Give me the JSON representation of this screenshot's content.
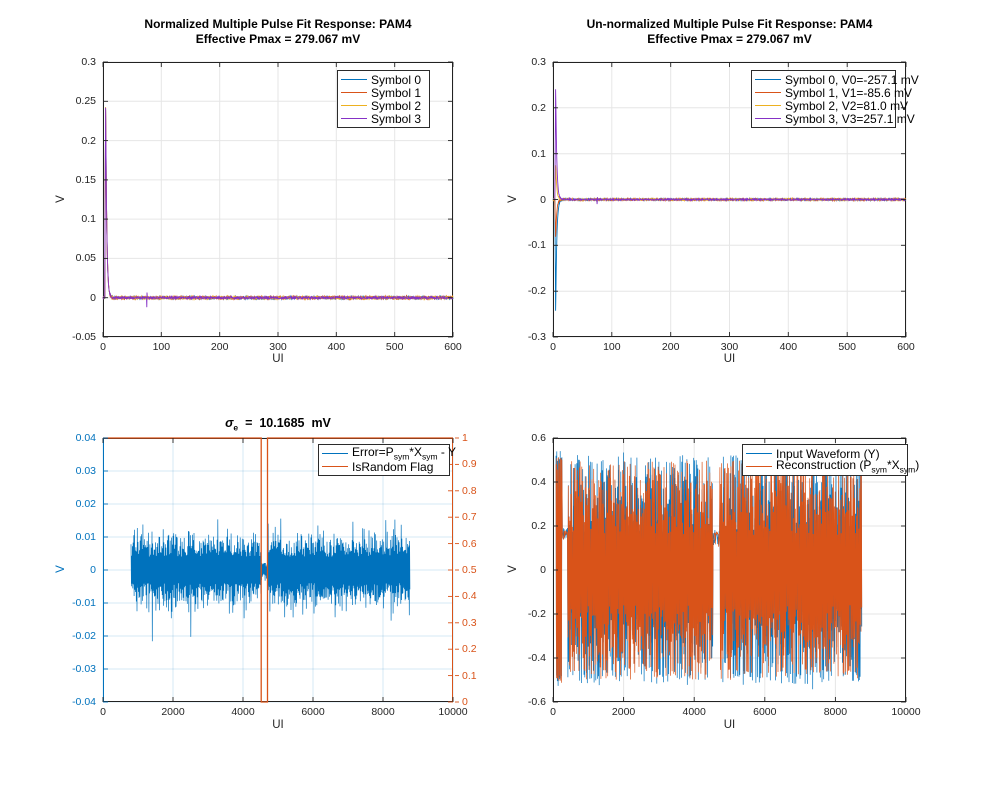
{
  "figure": {
    "background": "#ffffff"
  },
  "palette": {
    "blue": "#0072BD",
    "orange": "#D95319",
    "yellow": "#EDB120",
    "purple": "#8531C6"
  },
  "chart_data": [
    {
      "id": "normalized-pulse-response",
      "type": "line",
      "title_line1": "Normalized Multiple Pulse Fit Response: PAM4",
      "title_line2": "Effective Pmax = 279.067 mV",
      "effective_pmax_mV": 279.067,
      "xlabel": "UI",
      "ylabel": "V",
      "xlim": [
        0,
        600
      ],
      "ylim": [
        -0.05,
        0.3
      ],
      "xticks": [
        0,
        100,
        200,
        300,
        400,
        500,
        600
      ],
      "xticklabels": [
        "0",
        "100",
        "200",
        "300",
        "400",
        "500",
        "600"
      ],
      "yticks": [
        -0.05,
        0,
        0.05,
        0.1,
        0.15,
        0.2,
        0.25,
        0.3
      ],
      "yticklabels": [
        "-0.05",
        "0",
        "0.05",
        "0.1",
        "0.15",
        "0.2",
        "0.25",
        "0.3"
      ],
      "grid": true,
      "grid_color": "#e6e6e6",
      "legend": {
        "position": "top-right",
        "entries": [
          {
            "label": "Symbol 0",
            "color": "#0072BD"
          },
          {
            "label": "Symbol 1",
            "color": "#D95319"
          },
          {
            "label": "Symbol 2",
            "color": "#EDB120"
          },
          {
            "label": "Symbol 3",
            "color": "#8531C6"
          }
        ]
      },
      "series": [
        {
          "name": "Symbol 0",
          "color": "#0072BD",
          "kind": "pulse",
          "peak": 0.257,
          "noise": 0.0018,
          "seed": 11
        },
        {
          "name": "Symbol 1",
          "color": "#D95319",
          "kind": "pulse",
          "peak": 0.257,
          "noise": 0.002,
          "seed": 22
        },
        {
          "name": "Symbol 2",
          "color": "#EDB120",
          "kind": "pulse",
          "peak": 0.257,
          "noise": 0.002,
          "seed": 33
        },
        {
          "name": "Symbol 3",
          "color": "#8531C6",
          "kind": "pulse",
          "peak": 0.257,
          "noise": 0.0015,
          "seed": 44,
          "blip": {
            "x": 75,
            "amp": 0.012
          }
        }
      ]
    },
    {
      "id": "unnormalized-pulse-response",
      "type": "line",
      "title_line1": "Un-normalized Multiple Pulse Fit Response: PAM4",
      "title_line2": "Effective Pmax = 279.067 mV",
      "effective_pmax_mV": 279.067,
      "symbol_levels_mV": [
        -257.1,
        -85.6,
        81.0,
        257.1
      ],
      "xlabel": "UI",
      "ylabel": "V",
      "xlim": [
        0,
        600
      ],
      "ylim": [
        -0.3,
        0.3
      ],
      "xticks": [
        0,
        100,
        200,
        300,
        400,
        500,
        600
      ],
      "xticklabels": [
        "0",
        "100",
        "200",
        "300",
        "400",
        "500",
        "600"
      ],
      "yticks": [
        -0.3,
        -0.2,
        -0.1,
        0,
        0.1,
        0.2,
        0.3
      ],
      "yticklabels": [
        "-0.3",
        "-0.2",
        "-0.1",
        "0",
        "0.1",
        "0.2",
        "0.3"
      ],
      "grid": true,
      "grid_color": "#e6e6e6",
      "legend": {
        "position": "top-right",
        "entries": [
          {
            "label": "Symbol 0, V0=-257.1 mV",
            "color": "#0072BD"
          },
          {
            "label": "Symbol 1, V1=-85.6 mV",
            "color": "#D95319"
          },
          {
            "label": "Symbol 2, V2=81.0 mV",
            "color": "#EDB120"
          },
          {
            "label": "Symbol 3, V3=257.1 mV",
            "color": "#8531C6"
          }
        ]
      },
      "series": [
        {
          "name": "Symbol 0, V0=-257.1 mV",
          "color": "#0072BD",
          "kind": "pulse",
          "peak": -0.2571,
          "noise": 0.002,
          "seed": 55,
          "blip": {
            "x": 75,
            "amp": 0.006
          }
        },
        {
          "name": "Symbol 1, V1=-85.6 mV",
          "color": "#D95319",
          "kind": "pulse",
          "peak": -0.0856,
          "noise": 0.002,
          "seed": 66
        },
        {
          "name": "Symbol 2, V2=81.0 mV",
          "color": "#EDB120",
          "kind": "pulse",
          "peak": 0.081,
          "noise": 0.002,
          "seed": 77
        },
        {
          "name": "Symbol 3, V3=257.1 mV",
          "color": "#8531C6",
          "kind": "pulse",
          "peak": 0.2571,
          "noise": 0.0015,
          "seed": 88,
          "blip": {
            "x": 75,
            "amp": 0.01
          }
        }
      ]
    },
    {
      "id": "error-and-israndom-flag",
      "type": "line",
      "title_sigma": {
        "sym": "σ",
        "sub": "e",
        "rest": "  =  10.1685  mV"
      },
      "sigma_e_mV": 10.1685,
      "xlabel": "UI",
      "ylabel": "V",
      "xlim": [
        0,
        10000
      ],
      "ylim": [
        -0.04,
        0.04
      ],
      "ylim_right": [
        0,
        1
      ],
      "xticks": [
        0,
        2000,
        4000,
        6000,
        8000,
        10000
      ],
      "xticklabels": [
        "0",
        "2000",
        "4000",
        "6000",
        "8000",
        "10000"
      ],
      "yticks": [
        -0.04,
        -0.03,
        -0.02,
        -0.01,
        0,
        0.01,
        0.02,
        0.03,
        0.04
      ],
      "yticklabels": [
        "-0.04",
        "-0.03",
        "-0.02",
        "-0.01",
        "0",
        "0.01",
        "0.02",
        "0.03",
        "0.04"
      ],
      "yticks_right": [
        0,
        0.1,
        0.2,
        0.3,
        0.4,
        0.5,
        0.6,
        0.7,
        0.8,
        0.9,
        1
      ],
      "ytick_right_labels": [
        "0",
        "0.1",
        "0.2",
        "0.3",
        "0.4",
        "0.5",
        "0.6",
        "0.7",
        "0.8",
        "0.9",
        "1"
      ],
      "grid": true,
      "grid_color": "rgba(0,114,189,0.16)",
      "axis_colors": {
        "left": "#0072BD",
        "right": "#D95319"
      },
      "legend": {
        "position": "top-right",
        "entries": [
          {
            "label": "Error=P_{sym}*X_{sym} - Y",
            "color": "#0072BD"
          },
          {
            "label": "IsRandom Flag",
            "color": "#D95319"
          }
        ]
      },
      "series": [
        {
          "name": "Error=P_{sym}*X_{sym} - Y",
          "color": "#0072BD",
          "kind": "error",
          "axis": "left",
          "x_start": 800,
          "x_end": 8770,
          "quiet": [
            4520,
            4700
          ],
          "seed": 7
        },
        {
          "name": "IsRandom Flag",
          "color": "#D95319",
          "kind": "flag",
          "axis": "right",
          "high": 1,
          "low": 0,
          "dip": [
            4520,
            4700
          ]
        }
      ]
    },
    {
      "id": "input-vs-reconstruction",
      "type": "line",
      "xlabel": "UI",
      "ylabel": "V",
      "xlim": [
        0,
        10000
      ],
      "ylim": [
        -0.6,
        0.6
      ],
      "xticks": [
        0,
        2000,
        4000,
        6000,
        8000,
        10000
      ],
      "xticklabels": [
        "0",
        "2000",
        "4000",
        "6000",
        "8000",
        "10000"
      ],
      "yticks": [
        -0.6,
        -0.4,
        -0.2,
        0,
        0.2,
        0.4,
        0.6
      ],
      "yticklabels": [
        "-0.6",
        "-0.4",
        "-0.2",
        "0",
        "0.2",
        "0.4",
        "0.6"
      ],
      "grid": true,
      "grid_color": "#e6e6e6",
      "legend": {
        "position": "top-right",
        "entries": [
          {
            "label": "Input Waveform (Y)",
            "color": "#0072BD"
          },
          {
            "label": "Reconstruction  (P_{sym}*X_{sym})",
            "color": "#D95319"
          }
        ]
      },
      "series": [
        {
          "name": "Input Waveform (Y)",
          "color": "#0072BD",
          "kind": "pam4",
          "scale": 1.05,
          "x_start": 85,
          "x_end": 8750,
          "gap": [
            4530,
            4720
          ],
          "seed": 91
        },
        {
          "name": "Reconstruction  (P_{sym}*X_{sym})",
          "color": "#D95319",
          "kind": "pam4",
          "scale": 1.0,
          "x_start": 85,
          "x_end": 8750,
          "gap": [
            4530,
            4720
          ],
          "seed": 92
        }
      ]
    }
  ]
}
